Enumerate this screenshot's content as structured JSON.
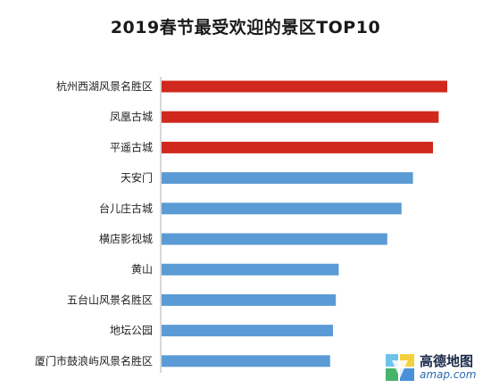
{
  "chart_data": {
    "type": "bar",
    "orientation": "horizontal",
    "title": "2019春节最受欢迎的景区TOP10",
    "categories": [
      "杭州西湖风景名胜区",
      "凤凰古城",
      "平遥古城",
      "天安门",
      "台儿庄古城",
      "横店影视城",
      "黄山",
      "五台山风景名胜区",
      "地坛公园",
      "厦门市鼓浪屿风景名胜区"
    ],
    "values": [
      100,
      97,
      95,
      88,
      84,
      79,
      62,
      61,
      60,
      59
    ],
    "xlim": [
      0,
      100
    ],
    "grid": false,
    "legend": "none",
    "value_labels_visible": false,
    "colors": {
      "top3": "#d0281c",
      "rest": "#5b9bd5",
      "axis": "#b0b0b0",
      "label": "#222222"
    }
  },
  "logo": {
    "name": "高德地图",
    "domain": "amap.com"
  }
}
